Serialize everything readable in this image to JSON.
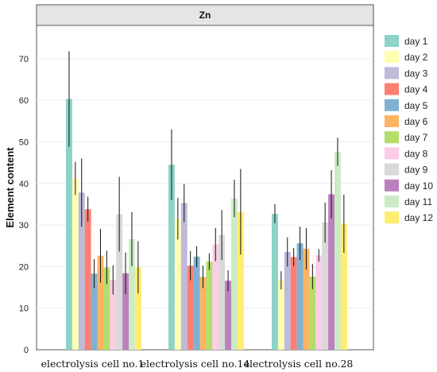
{
  "chart_data": {
    "type": "bar",
    "title": "Zn",
    "ylabel": "Element content",
    "xlabel": "",
    "ylim": [
      0,
      78
    ],
    "yticks": [
      0,
      10,
      20,
      30,
      40,
      50,
      60,
      70
    ],
    "grid": true,
    "legend_position": "right",
    "categories": [
      "electrolysis cell no.1",
      "electrolysis cell no.14",
      "electrolysis cell no.28"
    ],
    "series": [
      {
        "name": "day 1",
        "color": "#8dd3c7",
        "values": [
          60.3,
          44.5,
          32.7
        ],
        "errors": [
          11.5,
          8.5,
          2.3
        ]
      },
      {
        "name": "day 2",
        "color": "#ffffb3",
        "values": [
          41.2,
          31.5,
          16.7
        ],
        "errors": [
          4.0,
          5.0,
          2.2
        ]
      },
      {
        "name": "day 3",
        "color": "#bebada",
        "values": [
          37.8,
          35.3,
          23.5
        ],
        "errors": [
          8.2,
          4.6,
          3.5
        ]
      },
      {
        "name": "day 4",
        "color": "#fb8072",
        "values": [
          33.8,
          20.2,
          22.3
        ],
        "errors": [
          3.0,
          3.5,
          2.2
        ]
      },
      {
        "name": "day 5",
        "color": "#80b1d3",
        "values": [
          18.3,
          22.4,
          25.6
        ],
        "errors": [
          3.5,
          2.5,
          4.0
        ]
      },
      {
        "name": "day 6",
        "color": "#fdb462",
        "values": [
          22.6,
          17.5,
          24.3
        ],
        "errors": [
          6.5,
          2.7,
          5.0
        ]
      },
      {
        "name": "day 7",
        "color": "#b3de69",
        "values": [
          19.8,
          21.2,
          17.6
        ],
        "errors": [
          4.0,
          2.0,
          3.0
        ]
      },
      {
        "name": "day 8",
        "color": "#fccde5",
        "values": [
          16.8,
          25.3,
          22.7
        ],
        "errors": [
          3.5,
          4.0,
          1.5
        ]
      },
      {
        "name": "day 9",
        "color": "#d9d9d9",
        "values": [
          32.6,
          27.6,
          30.6
        ],
        "errors": [
          9.0,
          6.0,
          4.8
        ]
      },
      {
        "name": "day 10",
        "color": "#bc80bd",
        "values": [
          18.4,
          16.6,
          37.4
        ],
        "errors": [
          5.0,
          2.5,
          5.8
        ]
      },
      {
        "name": "day 11",
        "color": "#ccebc5",
        "values": [
          26.6,
          36.4,
          47.6
        ],
        "errors": [
          6.5,
          4.5,
          3.4
        ]
      },
      {
        "name": "day 12",
        "color": "#ffed6f",
        "values": [
          19.8,
          33.2,
          30.3
        ],
        "errors": [
          6.3,
          10.3,
          7.0
        ]
      }
    ]
  }
}
